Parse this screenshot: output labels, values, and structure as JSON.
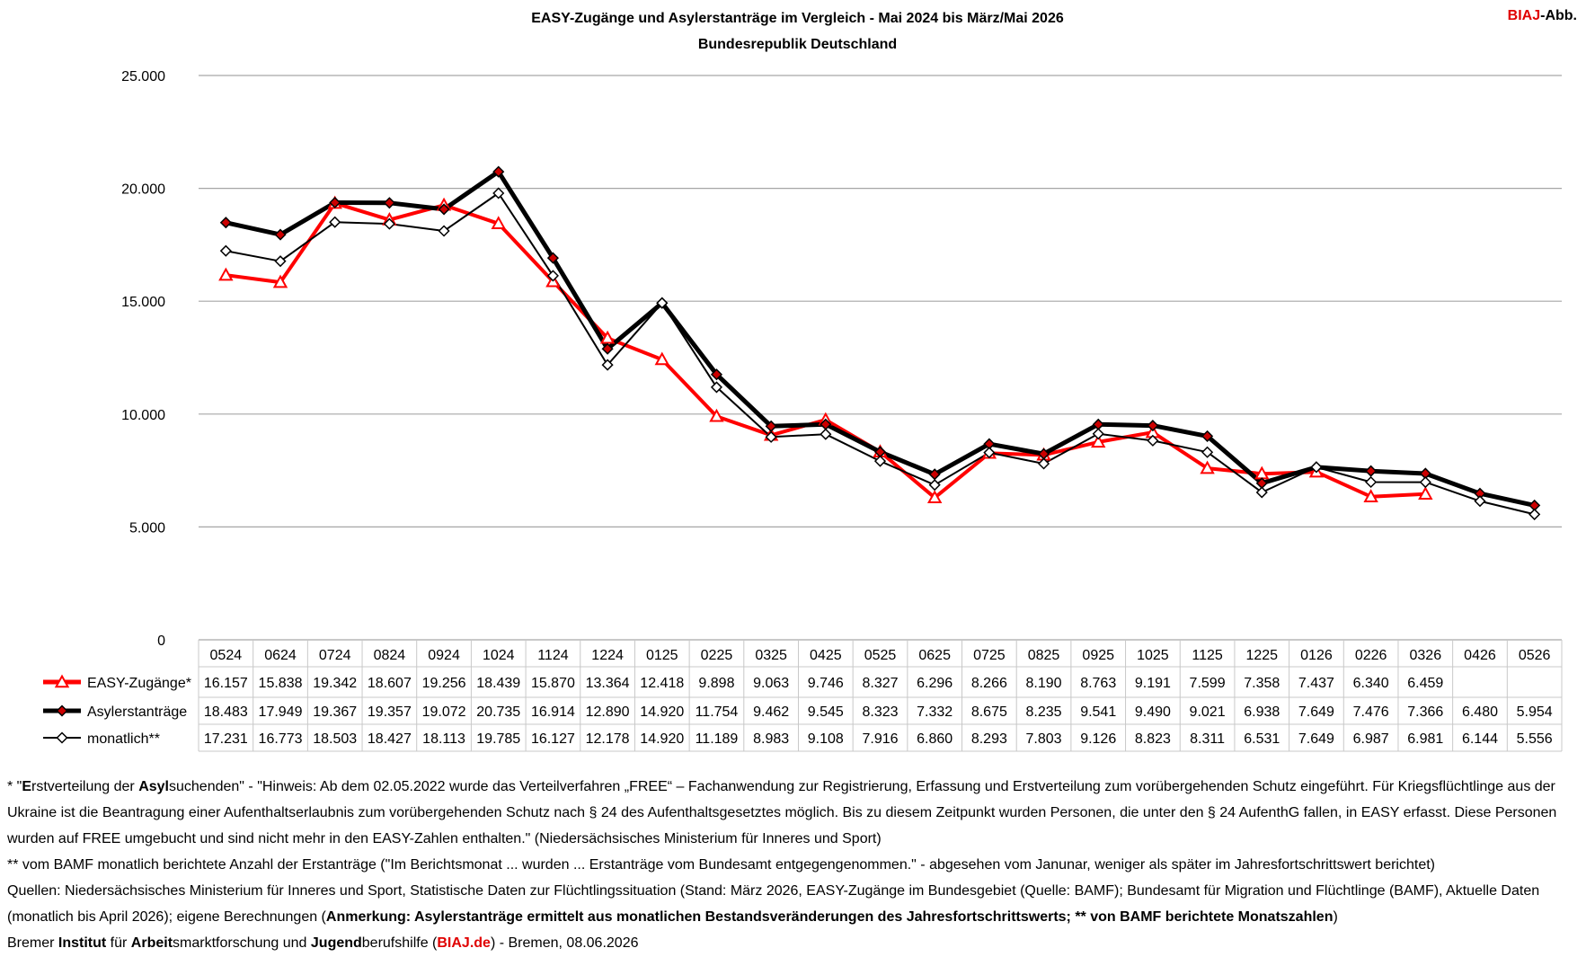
{
  "header": {
    "title": "EASY-Zugänge und Asylerstanträge im Vergleich - Mai 2024 bis März/Mai 2026",
    "subtitle": "Bundesrepublik Deutschland",
    "badge_red": "BIAJ",
    "badge_black": "-Abb."
  },
  "chart_data": {
    "type": "line",
    "title": "EASY-Zugänge und Asylerstanträge im Vergleich - Mai 2024 bis März/Mai 2026",
    "subtitle": "Bundesrepublik Deutschland",
    "ylim": [
      0,
      25000
    ],
    "yticks": [
      0,
      5000,
      10000,
      15000,
      20000,
      25000
    ],
    "ytick_labels": [
      "0",
      "5.000",
      "10.000",
      "15.000",
      "20.000",
      "25.000"
    ],
    "grid": true,
    "legend": "data-table",
    "categories": [
      "0524",
      "0624",
      "0724",
      "0824",
      "0924",
      "1024",
      "1124",
      "1224",
      "0125",
      "0225",
      "0325",
      "0425",
      "0525",
      "0625",
      "0725",
      "0825",
      "0925",
      "1025",
      "1125",
      "1225",
      "0126",
      "0226",
      "0326",
      "0426",
      "0526"
    ],
    "series": [
      {
        "name": "EASY-Zugänge*",
        "color": "#ff0000",
        "marker": "triangle-open",
        "values": [
          16157,
          15838,
          19342,
          18607,
          19256,
          18439,
          15870,
          13364,
          12418,
          9898,
          9063,
          9746,
          8327,
          6296,
          8266,
          8190,
          8763,
          9191,
          7599,
          7358,
          7437,
          6340,
          6459,
          null,
          null
        ],
        "labels": [
          "16.157",
          "15.838",
          "19.342",
          "18.607",
          "19.256",
          "18.439",
          "15.870",
          "13.364",
          "12.418",
          "9.898",
          "9.063",
          "9.746",
          "8.327",
          "6.296",
          "8.266",
          "8.190",
          "8.763",
          "9.191",
          "7.599",
          "7.358",
          "7.437",
          "6.340",
          "6.459",
          "",
          ""
        ]
      },
      {
        "name": "Asylerstanträge",
        "color": "#000000",
        "marker": "diamond-red",
        "values": [
          18483,
          17949,
          19367,
          19357,
          19072,
          20735,
          16914,
          12890,
          14920,
          11754,
          9462,
          9545,
          8323,
          7332,
          8675,
          8235,
          9541,
          9490,
          9021,
          6938,
          7649,
          7476,
          7366,
          6480,
          5954
        ],
        "labels": [
          "18.483",
          "17.949",
          "19.367",
          "19.357",
          "19.072",
          "20.735",
          "16.914",
          "12.890",
          "14.920",
          "11.754",
          "9.462",
          "9.545",
          "8.323",
          "7.332",
          "8.675",
          "8.235",
          "9.541",
          "9.490",
          "9.021",
          "6.938",
          "7.649",
          "7.476",
          "7.366",
          "6.480",
          "5.954"
        ]
      },
      {
        "name": "monatlich**",
        "color": "#000000",
        "marker": "diamond-open",
        "values": [
          17231,
          16773,
          18503,
          18427,
          18113,
          19785,
          16127,
          12178,
          14920,
          11189,
          8983,
          9108,
          7916,
          6860,
          8293,
          7803,
          9126,
          8823,
          8311,
          6531,
          7649,
          6987,
          6981,
          6144,
          5556
        ],
        "labels": [
          "17.231",
          "16.773",
          "18.503",
          "18.427",
          "18.113",
          "19.785",
          "16.127",
          "12.178",
          "14.920",
          "11.189",
          "8.983",
          "9.108",
          "7.916",
          "6.860",
          "8.293",
          "7.803",
          "9.126",
          "8.823",
          "8.311",
          "6.531",
          "7.649",
          "6.987",
          "6.981",
          "6.144",
          "5.556"
        ]
      }
    ]
  },
  "footnotes": {
    "n1_star": "* \"",
    "n1_b1": "E",
    "n1_t1": "rstverteilung der ",
    "n1_b2": "Asyl",
    "n1_t2": "suchenden\" - \"Hinweis: Ab dem 02.05.2022 wurde das Verteilverfahren „FREE“ – Fachanwendung zur Registrierung, Erfassung und Erstverteilung zum vorübergehenden Schutz eingeführt. Für Kriegsflüchtlinge aus der Ukraine ist die Beantragung einer Aufenthaltserlaubnis zum vorübergehenden Schutz nach § 24 des Aufenthaltsgesetztes möglich. Bis zu diesem Zeitpunkt wurden Personen, die unter den § 24 AufenthG fallen, in EASY erfasst. Diese Personen wurden auf FREE umgebucht und sind nicht mehr in den EASY-Zahlen enthalten.\" (Niedersächsisches Ministerium für Inneres und Sport)",
    "n2": "** vom BAMF monatlich berichtete Anzahl der Erstanträge (\"Im Berichtsmonat ... wurden ... Erstanträge vom Bundesamt entgegengenommen.\" - abgesehen vom Janunar, weniger als später im Jahresfortschrittswert berichtet)",
    "n3_t1": "Quellen: Niedersächsisches Ministerium für Inneres und Sport, Statistische Daten zur Flüchtlingssituation (Stand: März 2026, EASY-Zugänge im Bundesgebiet (Quelle: BAMF); Bundesamt für Migration und Flüchtlinge (BAMF), Aktuelle Daten (monatlich bis April 2026); eigene Berechnungen (",
    "n3_b": "Anmerkung: Asylerstanträge ermittelt aus monatlichen Bestandsveränderungen des Jahresfortschrittswerts; ** von BAMF berichtete Monatszahlen",
    "n3_t2": ")",
    "n4_t1": "Bremer ",
    "n4_b1": "Institut",
    "n4_t2": " für ",
    "n4_b2": "Arbeit",
    "n4_t3": "smarktforschung und ",
    "n4_b3": "Jugend",
    "n4_t4": "berufshilfe (",
    "n4_link": "BIAJ.de",
    "n4_t5": ") - Bremen, 08.06.2026"
  }
}
